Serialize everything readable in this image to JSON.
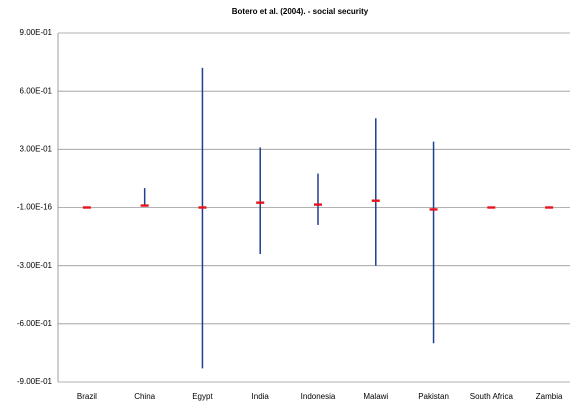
{
  "chart_data": {
    "type": "errorbar",
    "title": "Botero et al. (2004). - social security",
    "categories": [
      "Brazil",
      "China",
      "Egypt",
      "India",
      "Indonesia",
      "Malawi",
      "Pakistan",
      "South Africa",
      "Zambia"
    ],
    "values": [
      0,
      0.01,
      0,
      0.025,
      0.015,
      0.035,
      -0.01,
      0,
      0
    ],
    "upper": [
      null,
      0.1,
      0.72,
      0.31,
      0.175,
      0.46,
      0.34,
      null,
      null
    ],
    "lower": [
      null,
      0.01,
      -0.83,
      -0.24,
      -0.09,
      -0.3,
      -0.7,
      null,
      null
    ],
    "color": "#e8141c",
    "interval_color": "#1f3f8f",
    "ylim": [
      -0.9,
      0.9
    ],
    "yticks": [
      {
        "value": -0.9,
        "label": "-9.00E-01"
      },
      {
        "value": -0.6,
        "label": "-6.00E-01"
      },
      {
        "value": -0.3,
        "label": "-3.00E-01"
      },
      {
        "value": -1e-16,
        "label": "-1.00E-16"
      },
      {
        "value": 0.3,
        "label": "3.00E-01"
      },
      {
        "value": 0.6,
        "label": "6.00E-01"
      },
      {
        "value": 0.9,
        "label": "9.00E-01"
      }
    ],
    "grid": true
  }
}
